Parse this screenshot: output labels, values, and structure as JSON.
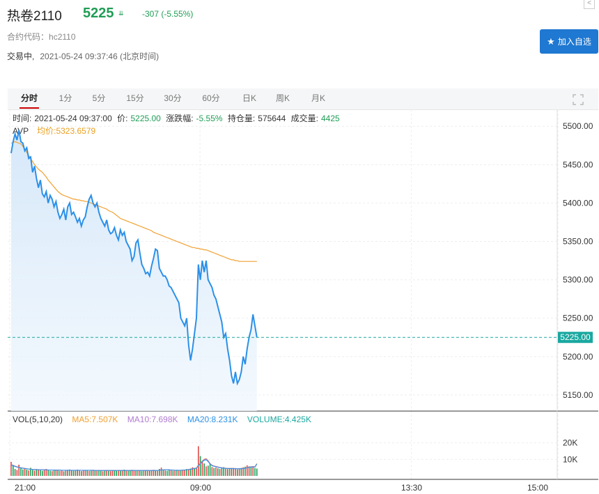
{
  "header": {
    "title": "热卷2110",
    "price": "5225",
    "arrow": "⇊",
    "change": "-307 (-5.55%)",
    "code_label": "合约代码：",
    "code": "hc2110",
    "status": "交易中,",
    "time": "2021-05-24 09:37:46 (北京时间)",
    "fav_label": "加入自选",
    "corner": "<"
  },
  "tabs": [
    "分时",
    "1分",
    "5分",
    "15分",
    "30分",
    "60分",
    "日K",
    "周K",
    "月K"
  ],
  "info": {
    "time_label": "时间:",
    "time_value": "2021-05-24 09:37:00",
    "price_label": "价:",
    "price_value": "5225.00",
    "change_label": "涨跌幅:",
    "change_value": "-5.55%",
    "oi_label": "持仓量:",
    "oi_value": "575644",
    "volume_label": "成交量:",
    "volume_value": "4425",
    "avp_label": "AVP",
    "avg_label": "均价:5323.6579"
  },
  "vol_legend": {
    "title": "VOL(5,10,20)",
    "ma5": "MA5:7.507K",
    "ma10": "MA10:7.698K",
    "ma20": "MA20:8.231K",
    "volume": "VOLUME:4.425K"
  },
  "colors": {
    "price_line": "#2b90e8",
    "avg_line": "#f0a030",
    "current_line": "#1aa8a0",
    "badge": "#1aa8a0",
    "up": "#e04848",
    "down": "#1f9d55",
    "ma5": "#f0a030",
    "ma10": "#b07cd0",
    "ma20": "#2b90e8"
  },
  "chart_data": {
    "type": "line",
    "y_ticks": [
      "5500.00",
      "5450.00",
      "5400.00",
      "5350.00",
      "5300.00",
      "5250.00",
      "5200.00",
      "5150.00"
    ],
    "ylim": [
      5129,
      5522
    ],
    "x_ticks": [
      "21:00",
      "09:00",
      "13:30",
      "15:00"
    ],
    "current_price": 5225,
    "current_label": "5225.00",
    "series": [
      {
        "values": [
          5465,
          5480,
          5490,
          5482,
          5495,
          5480,
          5478,
          5468,
          5472,
          5458,
          5460,
          5440,
          5448,
          5432,
          5420,
          5430,
          5412,
          5408,
          5415,
          5400,
          5410,
          5405,
          5395,
          5402,
          5388,
          5380,
          5385,
          5392,
          5378,
          5395,
          5400,
          5385,
          5388,
          5382,
          5375,
          5380,
          5370,
          5378,
          5382,
          5395,
          5405,
          5410,
          5400,
          5395,
          5400,
          5388,
          5380,
          5375,
          5370,
          5378,
          5365,
          5360,
          5362,
          5368,
          5358,
          5352,
          5365,
          5358,
          5362,
          5350,
          5345,
          5340,
          5325,
          5330,
          5348,
          5352,
          5335,
          5320,
          5315,
          5308,
          5310,
          5305,
          5318,
          5328,
          5340,
          5338,
          5315,
          5310,
          5305,
          5305,
          5300,
          5292,
          5290,
          5285,
          5280,
          5275,
          5270,
          5250,
          5245,
          5240,
          5250,
          5215,
          5195,
          5210,
          5230,
          5250,
          5320,
          5300,
          5325,
          5310,
          5325,
          5300,
          5295,
          5290,
          5280,
          5275,
          5265,
          5255,
          5245,
          5225,
          5230,
          5210,
          5195,
          5175,
          5165,
          5180,
          5165,
          5170,
          5180,
          5200,
          5190,
          5210,
          5225,
          5235,
          5255,
          5240,
          5225
        ]
      },
      {
        "values": [
          5478,
          5479,
          5480,
          5479,
          5478,
          5477,
          5474,
          5470,
          5466,
          5462,
          5458,
          5454,
          5450,
          5447,
          5444,
          5442,
          5440,
          5437,
          5434,
          5430,
          5427,
          5424,
          5421,
          5418,
          5415,
          5413,
          5411,
          5410,
          5409,
          5408,
          5407,
          5406,
          5405,
          5405,
          5404,
          5404,
          5403,
          5403,
          5402,
          5402,
          5401,
          5400,
          5399,
          5398,
          5397,
          5396,
          5395,
          5394,
          5393,
          5392,
          5390,
          5389,
          5388,
          5386,
          5384,
          5382,
          5380,
          5379,
          5378,
          5377,
          5376,
          5375,
          5374,
          5373,
          5372,
          5371,
          5370,
          5369,
          5368,
          5367,
          5366,
          5365,
          5364,
          5362,
          5361,
          5360,
          5359,
          5358,
          5357,
          5356,
          5355,
          5354,
          5353,
          5352,
          5351,
          5350,
          5349,
          5348,
          5347,
          5346,
          5345,
          5344,
          5343,
          5342,
          5342,
          5341,
          5341,
          5340,
          5340,
          5339,
          5339,
          5338,
          5337,
          5336,
          5335,
          5334,
          5333,
          5332,
          5331,
          5330,
          5329,
          5328,
          5327,
          5326,
          5326,
          5325,
          5325,
          5324,
          5324,
          5324,
          5324,
          5324,
          5324,
          5324,
          5324,
          5324,
          5324
        ]
      }
    ],
    "volume": {
      "y_ticks": [
        "20K",
        "10K"
      ],
      "ylim": [
        0,
        30000
      ],
      "values": [
        8500,
        6200,
        4200,
        3600,
        6800,
        5200,
        3900,
        4500,
        3800,
        3300,
        4900,
        3600,
        3200,
        4100,
        3700,
        3500,
        3000,
        3600,
        4200,
        3800,
        3100,
        2900,
        3400,
        3800,
        3300,
        3000,
        3500,
        2800,
        3200,
        3700,
        3900,
        3300,
        3100,
        3500,
        3800,
        3200,
        2900,
        3400,
        3600,
        3200,
        3000,
        3500,
        3700,
        3300,
        3000,
        3400,
        3200,
        2800,
        3300,
        3600,
        3100,
        2900,
        3200,
        3500,
        3000,
        3400,
        3100,
        3600,
        3800,
        3300,
        3000,
        3400,
        3700,
        3200,
        3000,
        3500,
        3300,
        2900,
        3400,
        3200,
        3600,
        3000,
        3300,
        3700,
        3100,
        3000,
        4200,
        5000,
        3600,
        3300,
        3100,
        3900,
        3500,
        3000,
        3400,
        3700,
        3300,
        3200,
        3500,
        3800,
        4200,
        3900,
        4500,
        5200,
        4800,
        4600,
        18000,
        12000,
        9000,
        7500,
        5800,
        6200,
        7500,
        5400,
        4800,
        5100,
        4600,
        4200,
        4900,
        5300,
        4400,
        4100,
        4600,
        4300,
        4800,
        4200,
        3900,
        4500,
        4800,
        5200,
        5600,
        6400,
        5800,
        5100,
        5400,
        4800,
        4425
      ],
      "up_flags": [
        1,
        0,
        0,
        1,
        1,
        0,
        0,
        1,
        0,
        1,
        0,
        0,
        1,
        0,
        1,
        0,
        0,
        1,
        1,
        0,
        0,
        1,
        0,
        1,
        0,
        1,
        1,
        0,
        1,
        0,
        1,
        0,
        0,
        1,
        0,
        1,
        0,
        1,
        1,
        0,
        1,
        0,
        1,
        0,
        1,
        0,
        0,
        1,
        0,
        1,
        0,
        1,
        1,
        0,
        0,
        1,
        0,
        1,
        0,
        1,
        0,
        0,
        1,
        1,
        0,
        1,
        0,
        0,
        1,
        0,
        1,
        0,
        1,
        1,
        0,
        1,
        0,
        1,
        0,
        1,
        0,
        0,
        1,
        0,
        1,
        0,
        1,
        0,
        1,
        1,
        0,
        1,
        0,
        1,
        0,
        1,
        1,
        0,
        1,
        0,
        1,
        0,
        0,
        1,
        0,
        1,
        0,
        1,
        0,
        0,
        1,
        0,
        1,
        0,
        1,
        1,
        0,
        1,
        0,
        1,
        0,
        1,
        1,
        0,
        1,
        0,
        0
      ],
      "ma5": [
        7000,
        6500,
        6000,
        5600,
        5300,
        5000,
        4800,
        4600,
        4400,
        4200,
        4100,
        4000,
        3900,
        3900,
        3800,
        3800,
        3700,
        3700,
        3700,
        3600,
        3600,
        3600,
        3500,
        3500,
        3500,
        3500,
        3400,
        3400,
        3400,
        3400,
        3400,
        3400,
        3400,
        3400,
        3400,
        3400,
        3400,
        3400,
        3400,
        3400,
        3400,
        3400,
        3400,
        3300,
        3300,
        3300,
        3300,
        3300,
        3300,
        3300,
        3300,
        3300,
        3300,
        3300,
        3300,
        3300,
        3300,
        3300,
        3300,
        3300,
        3300,
        3300,
        3300,
        3300,
        3300,
        3300,
        3300,
        3300,
        3300,
        3300,
        3300,
        3300,
        3300,
        3300,
        3300,
        3300,
        3400,
        3600,
        3700,
        3800,
        3800,
        3700,
        3600,
        3500,
        3400,
        3400,
        3400,
        3400,
        3500,
        3600,
        3700,
        3900,
        4100,
        4400,
        4600,
        4800,
        6500,
        7800,
        9100,
        10200,
        10500,
        9300,
        7600,
        6500,
        6100,
        5800,
        5500,
        5200,
        5000,
        4800,
        4700,
        4600,
        4600,
        4600,
        4500,
        4500,
        4400,
        4400,
        4500,
        4600,
        4800,
        5100,
        5400,
        5600,
        5700,
        5600,
        7507
      ]
    }
  }
}
